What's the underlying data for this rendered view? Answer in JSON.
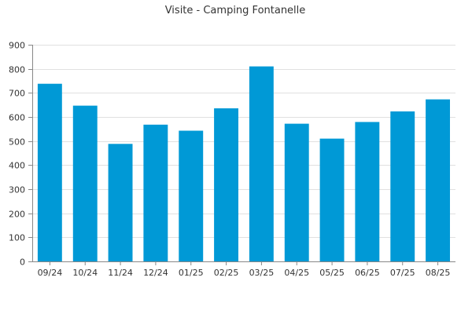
{
  "chart_data": {
    "type": "bar",
    "title": "Visite - Camping Fontanelle",
    "categories": [
      "09/24",
      "10/24",
      "11/24",
      "12/24",
      "01/25",
      "02/25",
      "03/25",
      "04/25",
      "05/25",
      "06/25",
      "07/25",
      "08/25"
    ],
    "values": [
      738,
      647,
      488,
      568,
      543,
      636,
      810,
      572,
      510,
      579,
      623,
      673
    ],
    "ylim": [
      0,
      900
    ],
    "yticks": [
      0,
      100,
      200,
      300,
      400,
      500,
      600,
      700,
      800,
      900
    ],
    "grid": true,
    "legend": "none",
    "bar_color": "#0099d6",
    "grid_color": "#e0e0e0",
    "axis_color": "#888888"
  }
}
